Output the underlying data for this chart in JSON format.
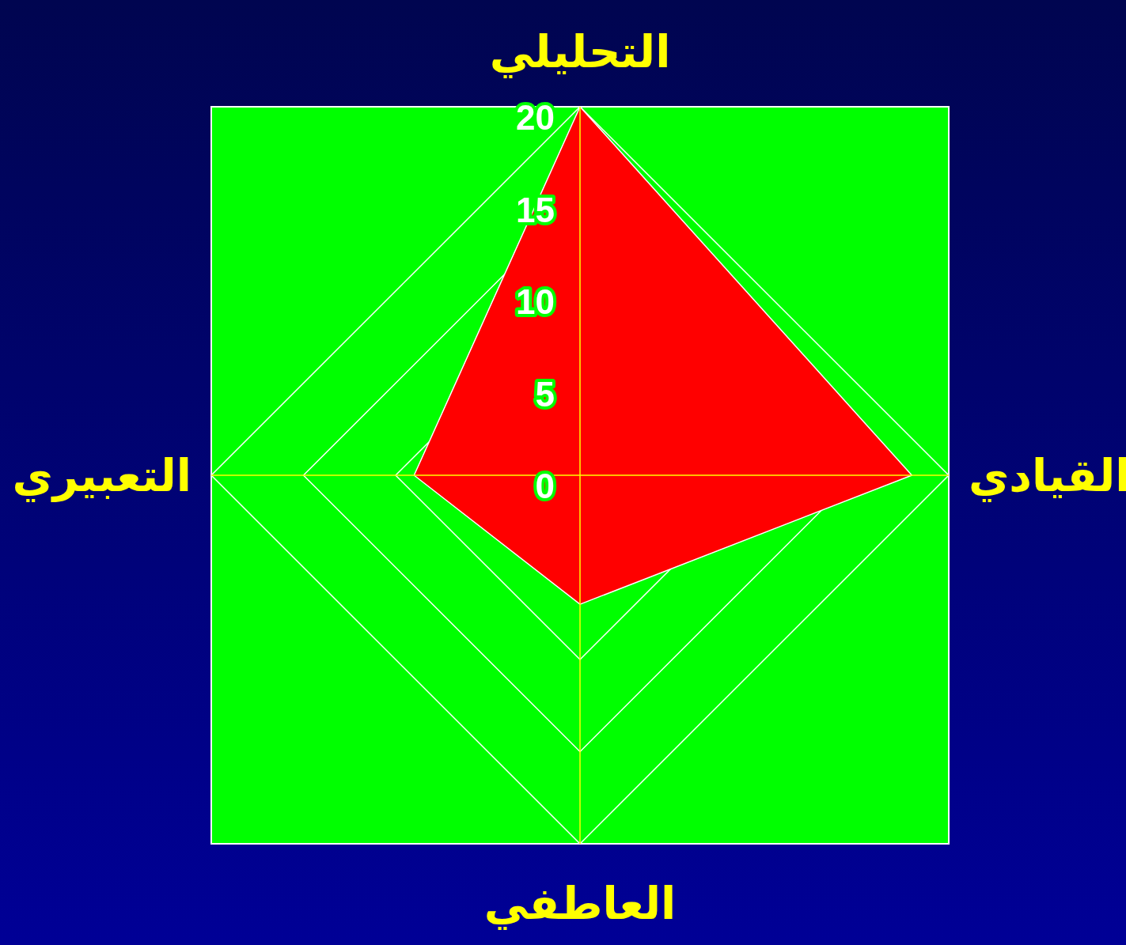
{
  "chart_data": {
    "type": "radar",
    "categories": [
      "التحليلي",
      "القيادي",
      "العاطفي",
      "التعبيري"
    ],
    "series": [
      {
        "color": "#ff0000",
        "values": [
          20,
          18,
          7,
          9
        ]
      }
    ],
    "ylim": [
      0,
      20
    ],
    "yticks": [
      0,
      5,
      10,
      15,
      20
    ],
    "grid": true
  }
}
